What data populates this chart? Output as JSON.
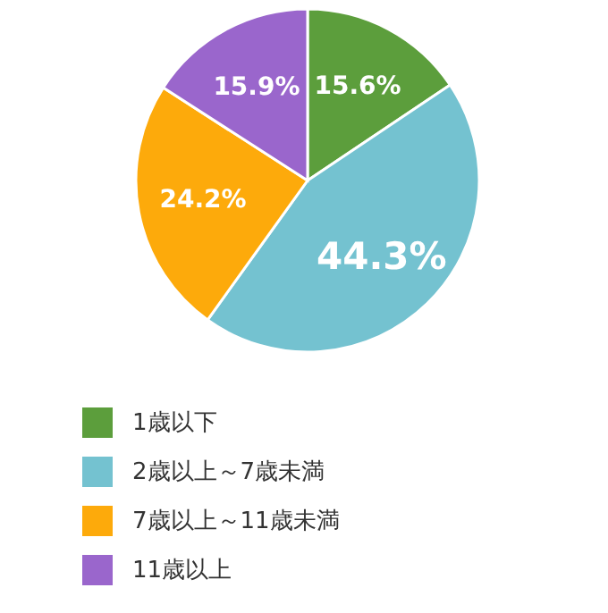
{
  "chart_data": {
    "type": "pie",
    "categories": [
      "1歳以下",
      "2歳以上～7歳未満",
      "7歳以上～11歳未満",
      "11歳以上"
    ],
    "values": [
      15.6,
      44.3,
      24.2,
      15.9
    ],
    "colors": [
      "#5c9e3c",
      "#74c2d0",
      "#fdaa0b",
      "#9a66cc"
    ],
    "value_labels": [
      "15.6%",
      "44.3%",
      "24.2%",
      "15.9%"
    ],
    "legend": "bottom"
  }
}
